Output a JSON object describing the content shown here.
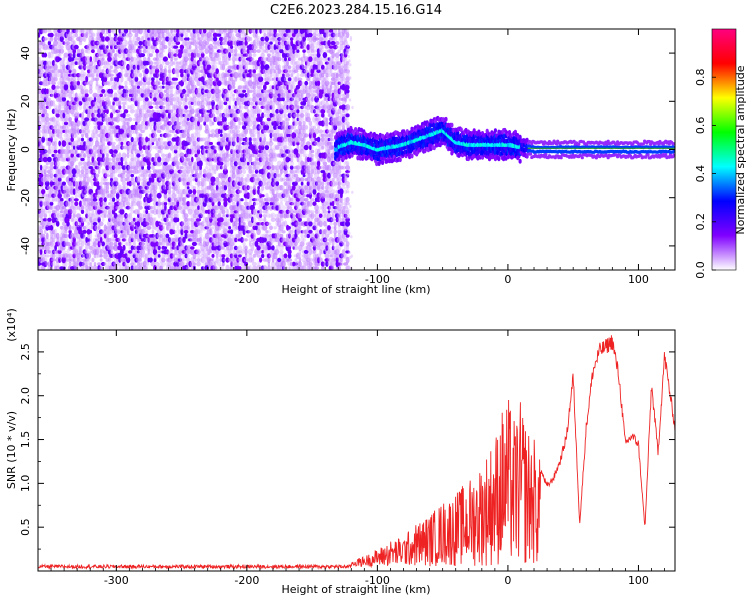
{
  "title": "C2E6.2023.284.15.16.G14",
  "chart_data": [
    {
      "type": "heatmap",
      "xlabel": "Height of straight line (km)",
      "ylabel": "Frequency (Hz)",
      "xlim": [
        -360,
        128
      ],
      "ylim": [
        -50,
        50
      ],
      "xticks": [
        -300,
        -200,
        -100,
        0,
        100
      ],
      "yticks": [
        -40,
        -20,
        0,
        20,
        40
      ],
      "colorbar": {
        "label": "Normalized spectral amplitude",
        "range": [
          0,
          1
        ],
        "ticks": [
          "0.0",
          "0.2",
          "0.4",
          "0.6",
          "0.8"
        ],
        "colormap": [
          "#ffffff",
          "#8000ff",
          "#0000ff",
          "#00ffff",
          "#00ff00",
          "#ffff00",
          "#ff0000",
          "#ff0080"
        ]
      },
      "ridge": {
        "x": [
          -130,
          -120,
          -110,
          -100,
          -90,
          -80,
          -70,
          -60,
          -50,
          -40,
          -30,
          -20,
          -10,
          0,
          10,
          20,
          50,
          100,
          128
        ],
        "y": [
          1,
          3,
          2,
          0,
          1,
          2,
          4,
          6,
          8,
          3,
          2,
          2,
          2,
          2,
          1,
          0,
          0,
          0,
          0
        ]
      }
    },
    {
      "type": "line",
      "xlabel": "Height of straight line (km)",
      "ylabel": "SNR (10 * v/v)",
      "y_scale_note": "(x10⁴)",
      "xlim": [
        -360,
        128
      ],
      "ylim": [
        0,
        2.75
      ],
      "xticks": [
        -300,
        -200,
        -100,
        0,
        100
      ],
      "yticks": [
        "0.5",
        "1.0",
        "1.5",
        "2.0",
        "2.5"
      ],
      "color": "#ee2222",
      "series": [
        {
          "x": [
            -360,
            -300,
            -200,
            -120,
            -110,
            -100,
            -90,
            -80,
            -70,
            -60,
            -50,
            -40,
            -30,
            -20,
            -10,
            -5,
            0,
            5,
            10,
            15,
            20,
            25,
            30,
            35,
            40,
            45,
            50,
            55,
            60,
            65,
            70,
            75,
            80,
            85,
            90,
            95,
            100,
            105,
            110,
            115,
            120,
            125,
            128
          ],
          "envelope": [
            0.06,
            0.06,
            0.06,
            0.07,
            0.12,
            0.2,
            0.3,
            0.35,
            0.5,
            0.6,
            0.75,
            0.85,
            1.0,
            1.2,
            1.5,
            1.8,
            1.95,
            1.7,
            1.9,
            1.6,
            1.5,
            1.2,
            1.0,
            1.1,
            1.3,
            1.6,
            2.3,
            0.55,
            1.7,
            2.35,
            2.6,
            2.65,
            2.72,
            2.3,
            1.5,
            1.6,
            1.5,
            0.5,
            2.2,
            1.4,
            2.55,
            2.0,
            1.7
          ]
        }
      ]
    }
  ]
}
